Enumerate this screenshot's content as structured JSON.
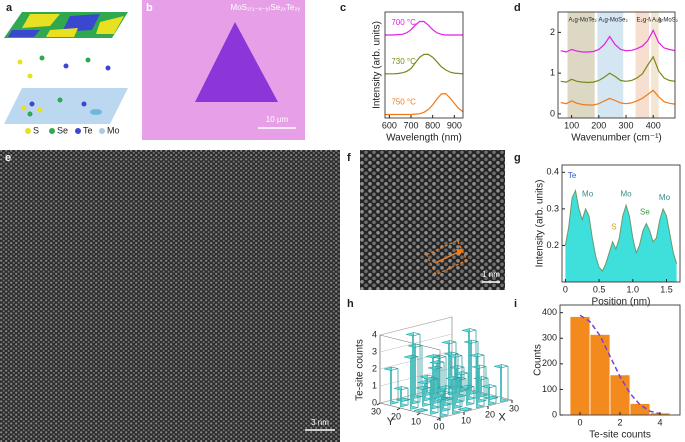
{
  "panel_labels": [
    "a",
    "b",
    "c",
    "d",
    "e",
    "f",
    "g",
    "h",
    "i"
  ],
  "panel_a": {
    "legend": [
      "S",
      "Se",
      "Te",
      "Mo"
    ]
  },
  "panel_b": {
    "formula": "MoS₂₍₁₋ₓ₋ᵧ₎Se₂ₓTe₂ᵧ",
    "scale_bar": "10 μm"
  },
  "panel_e": {
    "scale_bar": "3 nm"
  },
  "panel_f": {
    "scale_bar": "1 nm"
  },
  "chart_data": [
    {
      "type": "line",
      "xlabel": "Wavelength (nm)",
      "ylabel": "Intensity (arb. units)",
      "xlim": [
        580,
        940
      ],
      "xticks": [
        600,
        700,
        800,
        900
      ],
      "ylim": [
        0,
        3
      ],
      "series": [
        {
          "name": "700 °C",
          "color": "#e81ee8",
          "x": [
            580,
            600,
            620,
            640,
            660,
            680,
            700,
            720,
            740,
            760,
            780,
            800,
            820,
            840,
            860,
            880,
            900,
            920,
            940
          ],
          "values": [
            2.35,
            2.35,
            2.35,
            2.36,
            2.37,
            2.41,
            2.5,
            2.63,
            2.73,
            2.73,
            2.63,
            2.5,
            2.41,
            2.37,
            2.35,
            2.35,
            2.35,
            2.35,
            2.35
          ]
        },
        {
          "name": "730 °C",
          "color": "#7a8a1a",
          "x": [
            580,
            600,
            620,
            640,
            660,
            680,
            700,
            720,
            740,
            760,
            780,
            800,
            820,
            840,
            860,
            880,
            900,
            920,
            940
          ],
          "values": [
            1.25,
            1.25,
            1.25,
            1.26,
            1.28,
            1.32,
            1.4,
            1.56,
            1.72,
            1.8,
            1.8,
            1.72,
            1.59,
            1.45,
            1.36,
            1.3,
            1.27,
            1.26,
            1.25
          ]
        },
        {
          "name": "750 °C",
          "color": "#f07a1a",
          "x": [
            580,
            600,
            620,
            640,
            660,
            680,
            700,
            720,
            740,
            760,
            780,
            800,
            820,
            840,
            860,
            880,
            900,
            920,
            940
          ],
          "values": [
            0.1,
            0.1,
            0.1,
            0.1,
            0.1,
            0.1,
            0.1,
            0.11,
            0.12,
            0.16,
            0.24,
            0.37,
            0.54,
            0.68,
            0.69,
            0.57,
            0.42,
            0.27,
            0.18
          ]
        }
      ]
    },
    {
      "type": "line",
      "xlabel": "Wavenumber (cm⁻¹)",
      "xlim": [
        50,
        480
      ],
      "xticks": [
        100,
        200,
        300,
        400
      ],
      "ylim": [
        -0.1,
        2.5
      ],
      "yticks": [
        0,
        1,
        2
      ],
      "regions": [
        {
          "label": "A₁g-MoTe₂",
          "range": [
            85,
            185
          ],
          "color": "#ddd8c4"
        },
        {
          "label": "A₁g-MoSe₂",
          "range": [
            195,
            290
          ],
          "color": "#d3e6f2"
        },
        {
          "label": "E₂g-MoS₂",
          "range": [
            335,
            385
          ],
          "color": "#f7dfcf"
        },
        {
          "label": "A₁g-MoS₂",
          "range": [
            392,
            420
          ],
          "color": "#f3e6d2"
        }
      ],
      "series": [
        {
          "color": "#e81ee8",
          "x": [
            60,
            80,
            100,
            120,
            140,
            160,
            180,
            200,
            220,
            240,
            260,
            280,
            300,
            320,
            340,
            360,
            380,
            400,
            420,
            440,
            460,
            480
          ],
          "values": [
            1.55,
            1.52,
            1.58,
            1.54,
            1.52,
            1.52,
            1.53,
            1.58,
            1.7,
            1.9,
            1.7,
            1.58,
            1.55,
            1.56,
            1.6,
            1.66,
            1.8,
            2.05,
            1.75,
            1.62,
            1.58,
            1.55
          ]
        },
        {
          "color": "#7a8a1a",
          "x": [
            60,
            80,
            100,
            120,
            140,
            160,
            180,
            200,
            220,
            240,
            260,
            280,
            300,
            320,
            340,
            360,
            380,
            400,
            420,
            440,
            460,
            480
          ],
          "values": [
            0.8,
            0.78,
            0.85,
            0.8,
            0.78,
            0.77,
            0.78,
            0.82,
            0.9,
            1.0,
            0.92,
            0.82,
            0.8,
            0.82,
            0.88,
            0.98,
            1.2,
            1.4,
            1.05,
            0.88,
            0.82,
            0.8
          ]
        },
        {
          "color": "#f07a1a",
          "x": [
            60,
            80,
            100,
            120,
            140,
            160,
            180,
            200,
            220,
            240,
            260,
            280,
            300,
            320,
            340,
            360,
            380,
            400,
            420,
            440,
            460,
            480
          ],
          "values": [
            0.28,
            0.25,
            0.32,
            0.26,
            0.23,
            0.22,
            0.22,
            0.25,
            0.32,
            0.38,
            0.33,
            0.27,
            0.25,
            0.27,
            0.32,
            0.38,
            0.48,
            0.58,
            0.42,
            0.3,
            0.26,
            0.24
          ]
        }
      ]
    },
    {
      "type": "area",
      "xlabel": "Position (nm)",
      "ylabel": "Intensity (arb. units)",
      "xlim": [
        -0.05,
        1.7
      ],
      "xticks": [
        0,
        0.5,
        {
          "value": 1,
          "label": "1.0"
        },
        1.5
      ],
      "ylim": [
        0.1,
        0.42
      ],
      "yticks": [
        0.2,
        0.3,
        0.4
      ],
      "color": "#3fe0dc",
      "line_color": "#6a9a6a",
      "annotations": [
        "Te",
        "Mo",
        "S",
        "Mo",
        "Se",
        "Mo"
      ],
      "x": [
        0,
        0.05,
        0.1,
        0.15,
        0.2,
        0.25,
        0.3,
        0.35,
        0.4,
        0.45,
        0.5,
        0.55,
        0.6,
        0.65,
        0.7,
        0.75,
        0.8,
        0.85,
        0.9,
        0.95,
        1.0,
        1.05,
        1.1,
        1.15,
        1.2,
        1.25,
        1.3,
        1.35,
        1.4,
        1.45,
        1.5,
        1.55,
        1.6,
        1.65
      ],
      "values": [
        0.2,
        0.25,
        0.33,
        0.35,
        0.3,
        0.27,
        0.3,
        0.28,
        0.22,
        0.17,
        0.14,
        0.13,
        0.15,
        0.18,
        0.21,
        0.19,
        0.22,
        0.28,
        0.31,
        0.28,
        0.22,
        0.18,
        0.2,
        0.24,
        0.26,
        0.24,
        0.21,
        0.22,
        0.27,
        0.3,
        0.28,
        0.23,
        0.18,
        0.15
      ]
    },
    {
      "type": "bar3d",
      "zlabel": "Te-site counts",
      "xlabel": "X",
      "ylabel": "Y",
      "xticks": [
        0,
        10,
        20,
        30
      ],
      "yticks": [
        0,
        10,
        20,
        30
      ],
      "zticks": [
        0,
        1,
        2,
        3,
        4
      ],
      "color": "#5fdede",
      "x": [
        2.5,
        7.5,
        12.5,
        17.5,
        22.5,
        27.5
      ],
      "y": [
        2.5,
        7.5,
        12.5,
        17.5,
        22.5,
        27.5
      ],
      "values": [
        [
          1,
          2,
          0,
          3,
          1,
          2
        ],
        [
          2,
          1,
          3,
          1,
          2,
          0
        ],
        [
          0,
          3,
          1,
          2,
          4,
          1
        ],
        [
          3,
          1,
          2,
          0,
          1,
          3
        ],
        [
          1,
          4,
          1,
          2,
          3,
          1
        ],
        [
          2,
          0,
          3,
          1,
          2,
          2
        ]
      ]
    },
    {
      "type": "histogram",
      "xlabel": "Te-site counts",
      "ylabel": "Counts",
      "xlim": [
        -1,
        5
      ],
      "xticks": [
        0,
        2,
        4
      ],
      "ylim": [
        0,
        430
      ],
      "yticks": [
        0,
        100,
        200,
        300,
        400
      ],
      "color": "#f28a1e",
      "bins": [
        -0.5,
        0.5,
        1.5,
        2.5,
        3.5,
        4.5
      ],
      "values": [
        385,
        315,
        157,
        45,
        8
      ],
      "fit": {
        "color": "#7b3fd9",
        "x": [
          0,
          0.5,
          1,
          1.5,
          2,
          2.5,
          3,
          3.5,
          4
        ],
        "values": [
          390,
          365,
          310,
          230,
          150,
          85,
          40,
          15,
          5
        ]
      }
    }
  ]
}
